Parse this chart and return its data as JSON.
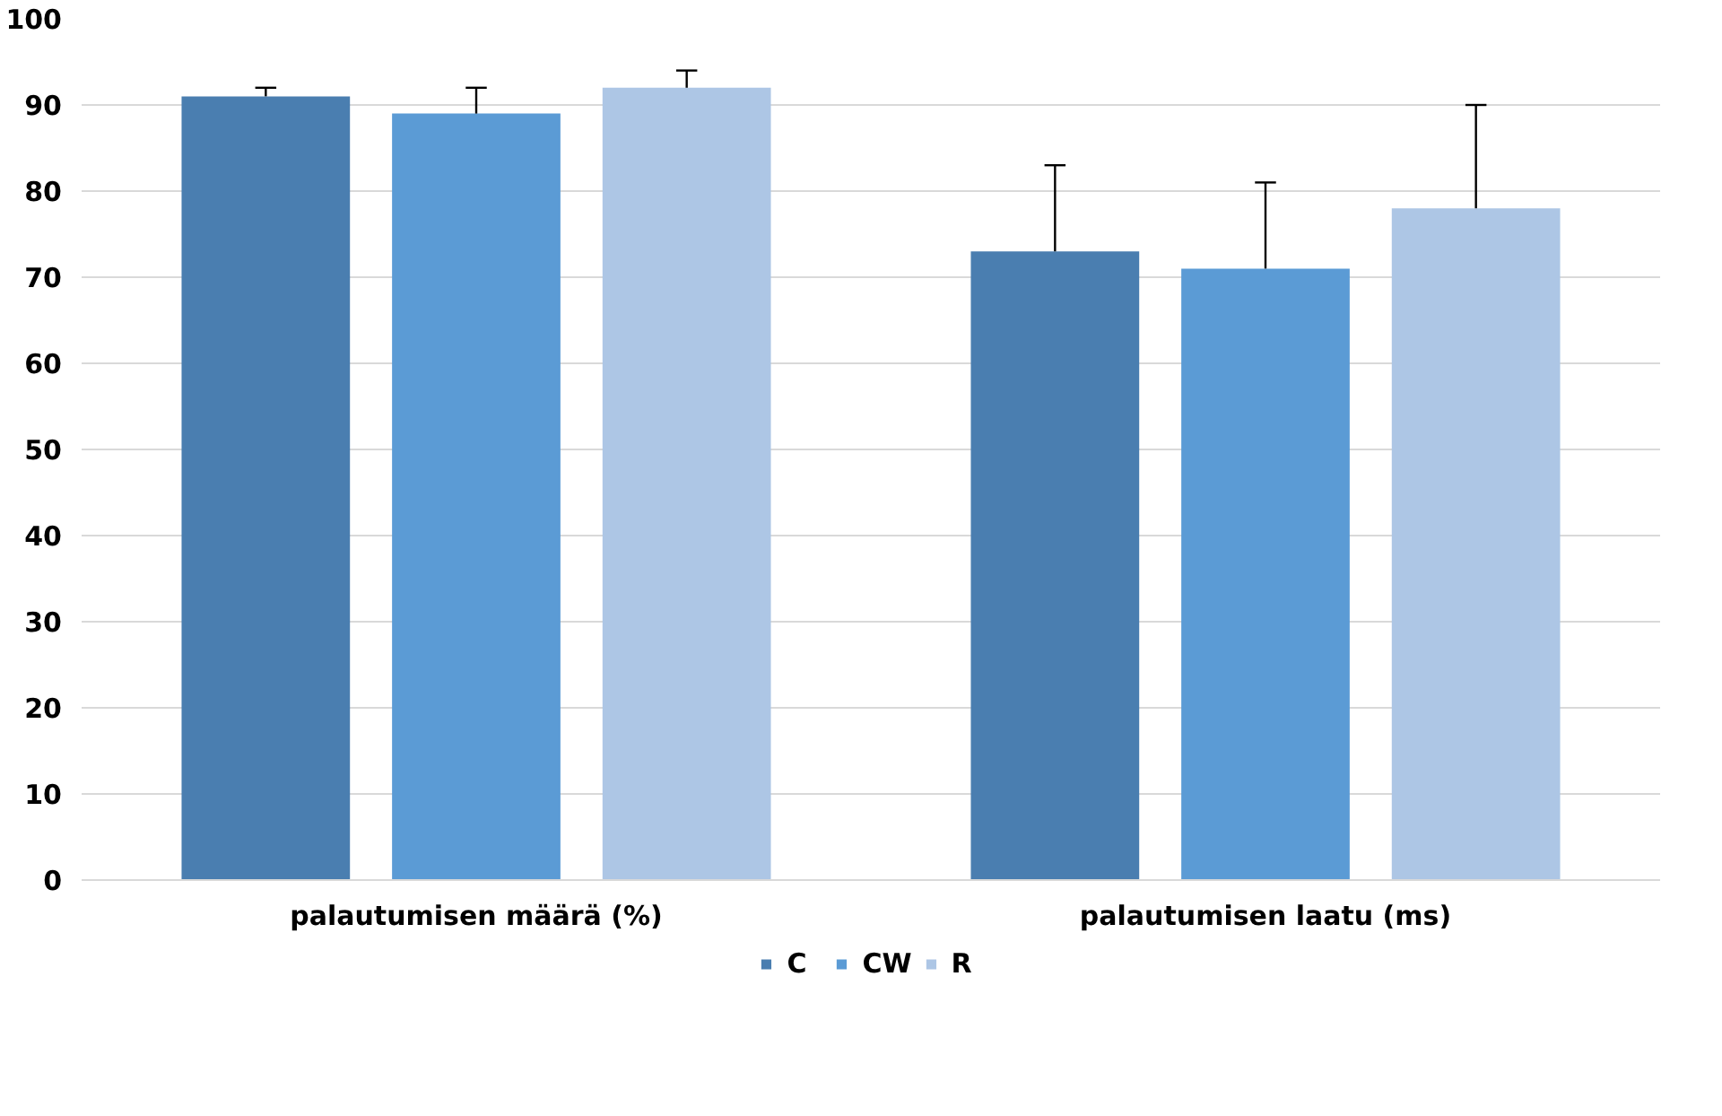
{
  "chart_data": {
    "type": "bar",
    "categories": [
      "palautumisen määrä (%)",
      "palautumisen laatu (ms)"
    ],
    "series": [
      {
        "name": "C",
        "color": "#4a7eb0",
        "values": [
          91,
          73
        ],
        "errors": [
          [
            91,
            92
          ],
          [
            73,
            83
          ]
        ]
      },
      {
        "name": "CW",
        "color": "#5b9bd5",
        "values": [
          89,
          71
        ],
        "errors": [
          [
            89,
            92
          ],
          [
            71,
            81
          ]
        ]
      },
      {
        "name": "R",
        "color": "#adc6e5",
        "values": [
          92,
          78
        ],
        "errors": [
          [
            92,
            94
          ],
          [
            78,
            90
          ]
        ]
      }
    ],
    "ylim": [
      0,
      100
    ],
    "yticks": [
      0,
      10,
      20,
      30,
      40,
      50,
      60,
      70,
      80,
      90,
      100
    ],
    "grid": "y",
    "legend": "bottom"
  }
}
